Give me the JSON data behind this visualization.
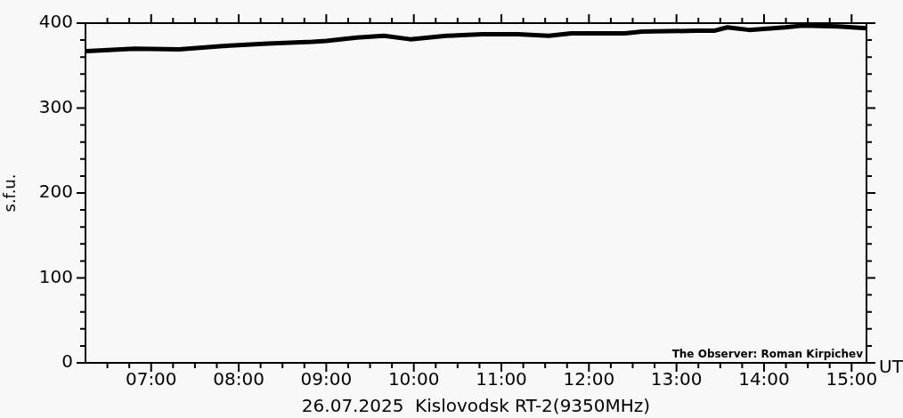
{
  "chart_data": {
    "type": "line",
    "xlabel": "26.07.2025  Kislovodsk RT-2(9350MHz)",
    "ylabel": "s.f.u.",
    "annotations": [
      "UT",
      "The Observer: Roman Kirpichev"
    ],
    "x": [
      6.26,
      6.81,
      7.32,
      7.82,
      8.33,
      8.84,
      9.0,
      9.35,
      9.66,
      9.96,
      10.37,
      10.78,
      11.19,
      11.54,
      11.8,
      12.41,
      12.61,
      13.22,
      13.43,
      13.58,
      13.83,
      14.24,
      14.44,
      14.85,
      15.17
    ],
    "series": [
      {
        "color": "#000000",
        "values": [
          367,
          370,
          369,
          373,
          376,
          378,
          379,
          383,
          385,
          381,
          385,
          387,
          387,
          385,
          388,
          388,
          390,
          391,
          391,
          395,
          392,
          395,
          397,
          396,
          394
        ]
      }
    ],
    "xlim": [
      6.25,
      15.17
    ],
    "ylim": [
      0,
      400
    ],
    "xticks": [
      {
        "value": 6.5,
        "label": null
      },
      {
        "value": 6.75,
        "label": null
      },
      {
        "value": 7,
        "label": "07:00"
      },
      {
        "value": 7.25,
        "label": null
      },
      {
        "value": 7.5,
        "label": null
      },
      {
        "value": 7.75,
        "label": null
      },
      {
        "value": 8,
        "label": "08:00"
      },
      {
        "value": 8.25,
        "label": null
      },
      {
        "value": 8.5,
        "label": null
      },
      {
        "value": 8.75,
        "label": null
      },
      {
        "value": 9,
        "label": "09:00"
      },
      {
        "value": 9.25,
        "label": null
      },
      {
        "value": 9.5,
        "label": null
      },
      {
        "value": 9.75,
        "label": null
      },
      {
        "value": 10,
        "label": "10:00"
      },
      {
        "value": 10.25,
        "label": null
      },
      {
        "value": 10.5,
        "label": null
      },
      {
        "value": 10.75,
        "label": null
      },
      {
        "value": 11,
        "label": "11:00"
      },
      {
        "value": 11.25,
        "label": null
      },
      {
        "value": 11.5,
        "label": null
      },
      {
        "value": 11.75,
        "label": null
      },
      {
        "value": 12,
        "label": "12:00"
      },
      {
        "value": 12.25,
        "label": null
      },
      {
        "value": 12.5,
        "label": null
      },
      {
        "value": 12.75,
        "label": null
      },
      {
        "value": 13,
        "label": "13:00"
      },
      {
        "value": 13.25,
        "label": null
      },
      {
        "value": 13.5,
        "label": null
      },
      {
        "value": 13.75,
        "label": null
      },
      {
        "value": 14,
        "label": "14:00"
      },
      {
        "value": 14.25,
        "label": null
      },
      {
        "value": 14.5,
        "label": null
      },
      {
        "value": 14.75,
        "label": null
      },
      {
        "value": 15,
        "label": "15:00"
      }
    ],
    "yticks": [
      0,
      {
        "value": 20,
        "label": null
      },
      {
        "value": 40,
        "label": null
      },
      {
        "value": 60,
        "label": null
      },
      {
        "value": 80,
        "label": null
      },
      100,
      {
        "value": 120,
        "label": null
      },
      {
        "value": 140,
        "label": null
      },
      {
        "value": 160,
        "label": null
      },
      {
        "value": 180,
        "label": null
      },
      200,
      {
        "value": 220,
        "label": null
      },
      {
        "value": 240,
        "label": null
      },
      {
        "value": 260,
        "label": null
      },
      {
        "value": 280,
        "label": null
      },
      300,
      {
        "value": 320,
        "label": null
      },
      {
        "value": 340,
        "label": null
      },
      {
        "value": 360,
        "label": null
      },
      {
        "value": 380,
        "label": null
      },
      400
    ],
    "grid": false,
    "legend": false,
    "marker": "none"
  }
}
